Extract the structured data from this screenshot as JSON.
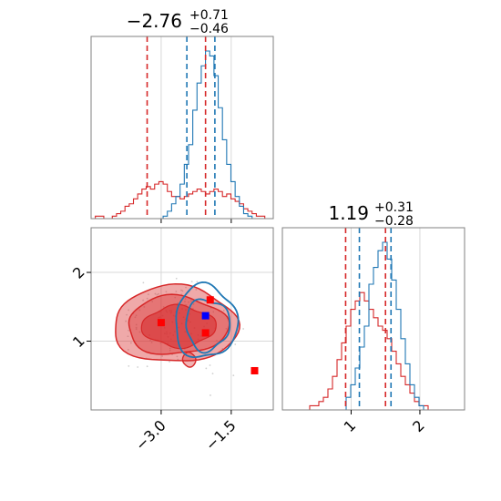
{
  "chart_data": [
    {
      "type": "histogram",
      "panel": "top-left",
      "title": {
        "value": "−2.76",
        "upper": "+0.71",
        "lower": "−0.46"
      },
      "x_range": [
        -4.5,
        -0.6
      ],
      "colors": {
        "red": "#d62728",
        "blue": "#1f77b4"
      },
      "red_quantiles": [
        -3.3,
        -2.05
      ],
      "blue_quantiles": [
        -2.45,
        -1.85
      ],
      "red_counts": [
        0,
        1,
        1,
        0,
        0,
        1,
        2,
        3,
        5,
        6,
        8,
        10,
        12,
        13,
        12,
        14,
        15,
        14,
        11,
        9,
        9,
        8,
        9,
        10,
        11,
        12,
        11,
        10,
        11,
        12,
        11,
        9,
        10,
        8,
        7,
        6,
        4,
        3,
        2,
        1,
        1,
        0,
        0
      ],
      "blue_counts": [
        0,
        0,
        0,
        0,
        0,
        0,
        0,
        0,
        0,
        0,
        0,
        0,
        0,
        0,
        0,
        0,
        0,
        1,
        3,
        6,
        9,
        14,
        22,
        30,
        44,
        55,
        62,
        68,
        66,
        58,
        45,
        32,
        22,
        15,
        9,
        5,
        2,
        1,
        0,
        0,
        0,
        0,
        0
      ]
    },
    {
      "type": "histogram",
      "panel": "bottom-right",
      "title": {
        "value": "1.19",
        "upper": "+0.31",
        "lower": "−0.28"
      },
      "x_range": [
        0.0,
        2.65
      ],
      "x_ticks": [
        1,
        2
      ],
      "x_tick_labels": [
        "1",
        "2"
      ],
      "red_quantiles": [
        0.92,
        1.5
      ],
      "blue_quantiles": [
        1.12,
        1.58
      ],
      "red_counts": [
        0,
        0,
        0,
        0,
        0,
        0,
        1,
        1,
        2,
        3,
        5,
        8,
        12,
        16,
        20,
        24,
        26,
        28,
        26,
        24,
        22,
        20,
        19,
        17,
        14,
        11,
        8,
        6,
        4,
        2,
        1,
        1,
        0,
        0,
        0,
        0,
        0,
        0,
        0,
        0
      ],
      "blue_counts": [
        0,
        0,
        0,
        0,
        0,
        0,
        0,
        0,
        0,
        0,
        0,
        0,
        0,
        0,
        3,
        6,
        10,
        15,
        20,
        30,
        34,
        38,
        40,
        36,
        31,
        24,
        17,
        11,
        6,
        3,
        1,
        0,
        0,
        0,
        0,
        0,
        0,
        0,
        0,
        0
      ]
    },
    {
      "type": "scatter_contour",
      "panel": "bottom-left",
      "x_range": [
        -4.5,
        -0.6
      ],
      "y_range": [
        0.0,
        2.65
      ],
      "x_ticks": [
        -3.0,
        -1.5
      ],
      "x_tick_labels": [
        "−3.0",
        "−1.5"
      ],
      "y_ticks": [
        1,
        2
      ],
      "y_tick_labels": [
        "1",
        "2"
      ],
      "red_points": [
        [
          -3.0,
          1.27
        ],
        [
          -1.95,
          1.6
        ],
        [
          -2.05,
          1.12
        ],
        [
          -1.0,
          0.57
        ]
      ],
      "blue_points": [
        [
          -2.05,
          1.37
        ]
      ]
    }
  ]
}
